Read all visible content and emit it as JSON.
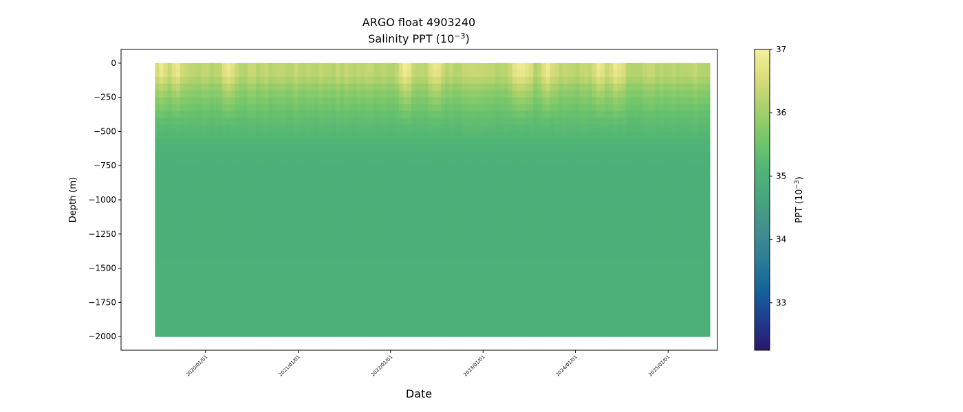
{
  "chart_data": {
    "type": "heatmap",
    "title": "ARGO float 4903240",
    "subtitle": "Salinity PPT (10",
    "subtitle_exp": "−3",
    "subtitle_close": ")",
    "xlabel": "Date",
    "ylabel": "Depth (m)",
    "x_ticks": [
      "2020/01/01",
      "2021/01/01",
      "2022/01/01",
      "2023/01/01",
      "2024/01/01",
      "2025/01/01"
    ],
    "x_range": [
      "2019/02/01",
      "2025/07/15"
    ],
    "data_x_range": [
      "2019/06/15",
      "2025/06/15"
    ],
    "y_ticks": [
      0,
      -250,
      -500,
      -750,
      -1000,
      -1250,
      -1500,
      -1750,
      -2000
    ],
    "y_tick_labels": [
      "0",
      "−250",
      "−500",
      "−750",
      "−1000",
      "−1250",
      "−1500",
      "−1750",
      "−2000"
    ],
    "ylim": [
      -2100,
      100
    ],
    "depth_range": [
      -2000,
      0
    ],
    "colorbar": {
      "label": "PPT (10",
      "label_exp": "−3",
      "label_close": ")",
      "range": [
        32.25,
        37
      ],
      "ticks": [
        33,
        34,
        35,
        36,
        37
      ],
      "tick_labels": [
        "33",
        "34",
        "35",
        "36",
        "37"
      ],
      "colormap": "haline",
      "colors": [
        "#2a186c",
        "#1f3c8f",
        "#14639a",
        "#2d7d96",
        "#418f8e",
        "#47a47e",
        "#4fb575",
        "#74c66a",
        "#a6d06a",
        "#d8dc78",
        "#f5ef9a"
      ]
    },
    "profile": {
      "depth": [
        0,
        -50,
        -100,
        -150,
        -250,
        -400,
        -600,
        -800,
        -1000,
        -1500,
        -2000
      ],
      "salinity": [
        36.25,
        36.3,
        36.25,
        36.0,
        35.7,
        35.35,
        35.05,
        34.92,
        34.92,
        34.95,
        34.97
      ]
    },
    "high_salinity_events": [
      "2019/07/15",
      "2019/09/10",
      "2020/04/01",
      "2022/03/01",
      "2022/07/01",
      "2023/05/15",
      "2023/06/15",
      "2023/09/15",
      "2024/04/01",
      "2024/06/15"
    ]
  }
}
